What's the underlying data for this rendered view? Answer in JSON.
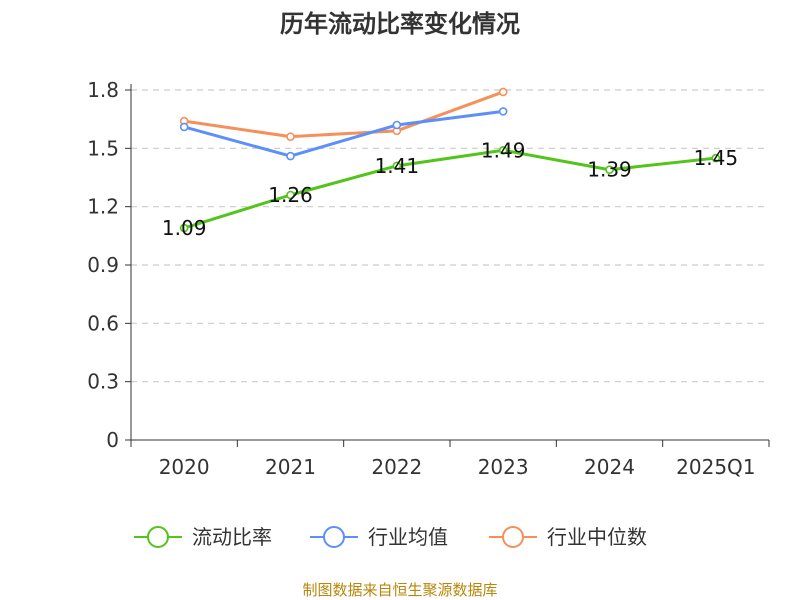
{
  "chart_data": {
    "type": "line",
    "title": "历年流动比率变化情况",
    "categories": [
      "2020",
      "2021",
      "2022",
      "2023",
      "2024",
      "2025Q1"
    ],
    "ylim": [
      0,
      1.8
    ],
    "yticks": [
      "0",
      "0.3",
      "0.6",
      "0.9",
      "1.2",
      "1.5",
      "1.8"
    ],
    "grid": true,
    "legend_position": "bottom",
    "series": [
      {
        "name": "流动比率",
        "color": "#52c41a",
        "values": [
          1.09,
          1.26,
          1.41,
          1.49,
          1.39,
          1.45
        ],
        "labels": [
          "1.09",
          "1.26",
          "1.41",
          "1.49",
          "1.39",
          "1.45"
        ]
      },
      {
        "name": "行业均值",
        "color": "#5b8ff9",
        "values": [
          1.61,
          1.46,
          1.62,
          1.69,
          null,
          null
        ]
      },
      {
        "name": "行业中位数",
        "color": "#f6905a",
        "values": [
          1.64,
          1.56,
          1.59,
          1.79,
          null,
          null
        ]
      }
    ]
  },
  "source": "制图数据来自恒生聚源数据库"
}
